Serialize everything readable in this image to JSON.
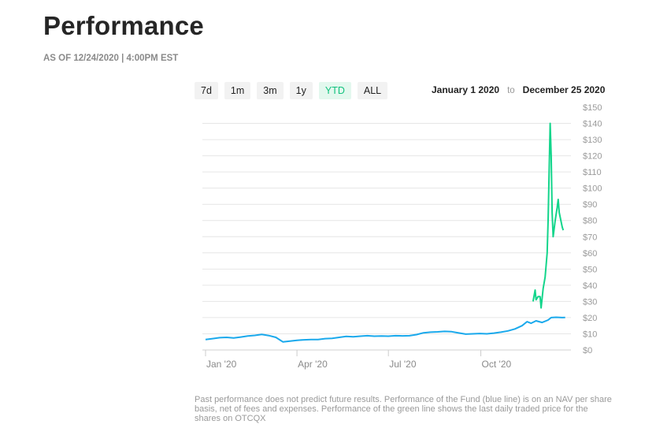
{
  "header": {
    "title": "Performance",
    "as_of": "AS OF 12/24/2020 | 4:00PM EST"
  },
  "range_buttons": [
    {
      "label": "7d",
      "active": false
    },
    {
      "label": "1m",
      "active": false
    },
    {
      "label": "3m",
      "active": false
    },
    {
      "label": "1y",
      "active": false
    },
    {
      "label": "YTD",
      "active": true
    },
    {
      "label": "ALL",
      "active": false
    }
  ],
  "date_range": {
    "start": "January 1 2020",
    "separator": "to",
    "end": "December 25 2020"
  },
  "colors": {
    "nav_line": "#1aa9ec",
    "market_line": "#13d58b",
    "active_range": "#12c27e",
    "grid": "#e6e6e6"
  },
  "chart_data": {
    "type": "line",
    "ylim": [
      0,
      150
    ],
    "y_ticks": [
      {
        "value": 0,
        "label": "$0"
      },
      {
        "value": 10,
        "label": "$10"
      },
      {
        "value": 20,
        "label": "$20"
      },
      {
        "value": 30,
        "label": "$30"
      },
      {
        "value": 40,
        "label": "$40"
      },
      {
        "value": 50,
        "label": "$50"
      },
      {
        "value": 60,
        "label": "$60"
      },
      {
        "value": 70,
        "label": "$70"
      },
      {
        "value": 80,
        "label": "$80"
      },
      {
        "value": 90,
        "label": "$90"
      },
      {
        "value": 100,
        "label": "$100"
      },
      {
        "value": 110,
        "label": "$110"
      },
      {
        "value": 120,
        "label": "$120"
      },
      {
        "value": 130,
        "label": "$130"
      },
      {
        "value": 140,
        "label": "$140"
      },
      {
        "value": 150,
        "label": "$150"
      }
    ],
    "xlim": [
      "2020-01-01",
      "2020-12-25"
    ],
    "x_ticks": [
      {
        "value": "2020-01-01",
        "label": "Jan '20"
      },
      {
        "value": "2020-04-01",
        "label": "Apr '20"
      },
      {
        "value": "2020-07-01",
        "label": "Jul '20"
      },
      {
        "value": "2020-10-01",
        "label": "Oct '20"
      }
    ],
    "grid": true,
    "legend": "none",
    "series": [
      {
        "points": [
          [
            "2020-01-01",
            6.5
          ],
          [
            "2020-01-08",
            7.0
          ],
          [
            "2020-01-15",
            7.6
          ],
          [
            "2020-01-22",
            7.8
          ],
          [
            "2020-01-29",
            7.4
          ],
          [
            "2020-02-05",
            8.0
          ],
          [
            "2020-02-12",
            8.6
          ],
          [
            "2020-02-19",
            9.0
          ],
          [
            "2020-02-26",
            9.6
          ],
          [
            "2020-03-04",
            8.9
          ],
          [
            "2020-03-11",
            7.8
          ],
          [
            "2020-03-18",
            5.0
          ],
          [
            "2020-03-25",
            5.5
          ],
          [
            "2020-04-01",
            6.0
          ],
          [
            "2020-04-08",
            6.3
          ],
          [
            "2020-04-15",
            6.5
          ],
          [
            "2020-04-22",
            6.5
          ],
          [
            "2020-04-29",
            7.0
          ],
          [
            "2020-05-06",
            7.2
          ],
          [
            "2020-05-13",
            7.8
          ],
          [
            "2020-05-20",
            8.4
          ],
          [
            "2020-05-27",
            8.2
          ],
          [
            "2020-06-03",
            8.5
          ],
          [
            "2020-06-10",
            8.8
          ],
          [
            "2020-06-17",
            8.5
          ],
          [
            "2020-06-24",
            8.6
          ],
          [
            "2020-07-01",
            8.5
          ],
          [
            "2020-07-08",
            8.8
          ],
          [
            "2020-07-15",
            8.7
          ],
          [
            "2020-07-22",
            8.8
          ],
          [
            "2020-07-29",
            9.5
          ],
          [
            "2020-08-05",
            10.6
          ],
          [
            "2020-08-12",
            11.0
          ],
          [
            "2020-08-19",
            11.2
          ],
          [
            "2020-08-26",
            11.5
          ],
          [
            "2020-09-02",
            11.3
          ],
          [
            "2020-09-09",
            10.5
          ],
          [
            "2020-09-16",
            9.8
          ],
          [
            "2020-09-23",
            10.0
          ],
          [
            "2020-09-30",
            10.2
          ],
          [
            "2020-10-07",
            10.0
          ],
          [
            "2020-10-14",
            10.4
          ],
          [
            "2020-10-21",
            11.0
          ],
          [
            "2020-10-28",
            11.8
          ],
          [
            "2020-11-04",
            13.0
          ],
          [
            "2020-11-11",
            15.0
          ],
          [
            "2020-11-16",
            17.5
          ],
          [
            "2020-11-20",
            16.5
          ],
          [
            "2020-11-25",
            18.0
          ],
          [
            "2020-12-01",
            17.0
          ],
          [
            "2020-12-07",
            18.5
          ],
          [
            "2020-12-10",
            20.0
          ],
          [
            "2020-12-15",
            20.2
          ],
          [
            "2020-12-21",
            20.0
          ],
          [
            "2020-12-24",
            20.1
          ]
        ]
      },
      {
        "points": [
          [
            "2020-11-22",
            30.0
          ],
          [
            "2020-11-24",
            37.0
          ],
          [
            "2020-11-25",
            31.0
          ],
          [
            "2020-11-27",
            33.0
          ],
          [
            "2020-11-29",
            33.0
          ],
          [
            "2020-11-30",
            26.0
          ],
          [
            "2020-12-02",
            38.0
          ],
          [
            "2020-12-04",
            45.0
          ],
          [
            "2020-12-06",
            60.0
          ],
          [
            "2020-12-07",
            80.0
          ],
          [
            "2020-12-08",
            110.0
          ],
          [
            "2020-12-09",
            140.0
          ],
          [
            "2020-12-10",
            120.0
          ],
          [
            "2020-12-11",
            85.0
          ],
          [
            "2020-12-12",
            70.0
          ],
          [
            "2020-12-14",
            80.0
          ],
          [
            "2020-12-16",
            88.0
          ],
          [
            "2020-12-17",
            93.0
          ],
          [
            "2020-12-18",
            85.0
          ],
          [
            "2020-12-21",
            76.0
          ],
          [
            "2020-12-22",
            74.0
          ]
        ]
      }
    ]
  },
  "disclaimer": "Past performance does not predict future results. Performance of the Fund (blue line) is on an NAV per share basis, net of fees and expenses. Performance of the green line shows the last daily traded price for the shares on OTCQX"
}
